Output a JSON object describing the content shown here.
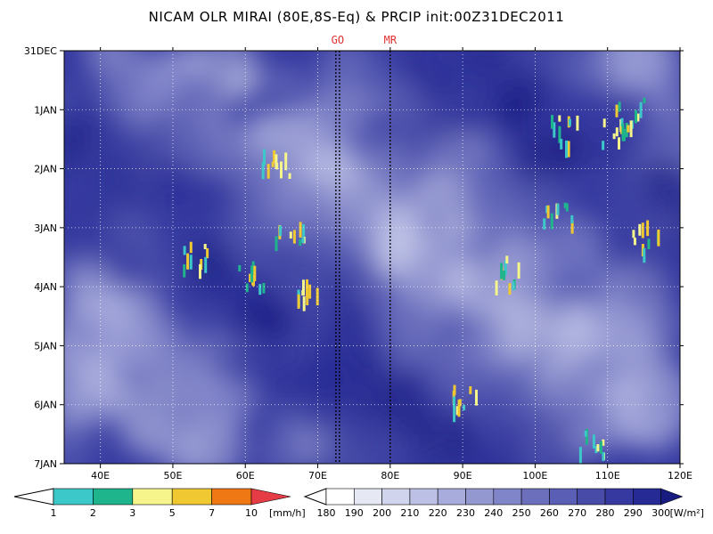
{
  "title": "NICAM OLR MIRAI (80E,8S-Eq) & PRCIP init:00Z31DEC2011",
  "chart_data": {
    "type": "heatmap",
    "title": "NICAM OLR MIRAI (80E,8S-Eq) & PRCIP init:00Z31DEC2011",
    "xlabel": "",
    "ylabel": "",
    "x_axis": {
      "range": [
        35,
        120
      ],
      "ticks": [
        40,
        50,
        60,
        70,
        80,
        90,
        100,
        110,
        120
      ],
      "tick_labels": [
        "40E",
        "50E",
        "60E",
        "70E",
        "80E",
        "90E",
        "100E",
        "110E",
        "120E"
      ]
    },
    "y_axis": {
      "range_days": [
        0,
        7
      ],
      "ticks": [
        0,
        1,
        2,
        3,
        4,
        5,
        6,
        7
      ],
      "tick_labels": [
        "31DEC",
        "1JAN",
        "2JAN",
        "3JAN",
        "4JAN",
        "5JAN",
        "6JAN",
        "7JAN"
      ],
      "direction": "top-to-bottom"
    },
    "grid": true,
    "reference_lines": [
      {
        "label": "GO",
        "x": [
          72.5,
          73.0
        ]
      },
      {
        "label": "MR",
        "x": [
          80
        ]
      }
    ],
    "precip_colorbar": {
      "unit": "[mm/h]",
      "levels": [
        "1",
        "2",
        "3",
        "5",
        "7",
        "10"
      ],
      "colors": [
        "#3cc8c8",
        "#1eb48c",
        "#f5f58c",
        "#f0c832",
        "#f07814",
        "#e63c46"
      ]
    },
    "olr_colorbar": {
      "unit": "[W/m²]",
      "levels": [
        "180",
        "190",
        "200",
        "210",
        "220",
        "230",
        "240",
        "250",
        "260",
        "270",
        "280",
        "290",
        "300"
      ],
      "colors": [
        "#ffffff",
        "#e6e8f4",
        "#d0d4ec",
        "#bcc0e4",
        "#a8acdc",
        "#9498d0",
        "#8084c8",
        "#6c70bc",
        "#5a5eb4",
        "#484ca8",
        "#363aa0",
        "#262a94",
        "#181c80"
      ]
    }
  }
}
